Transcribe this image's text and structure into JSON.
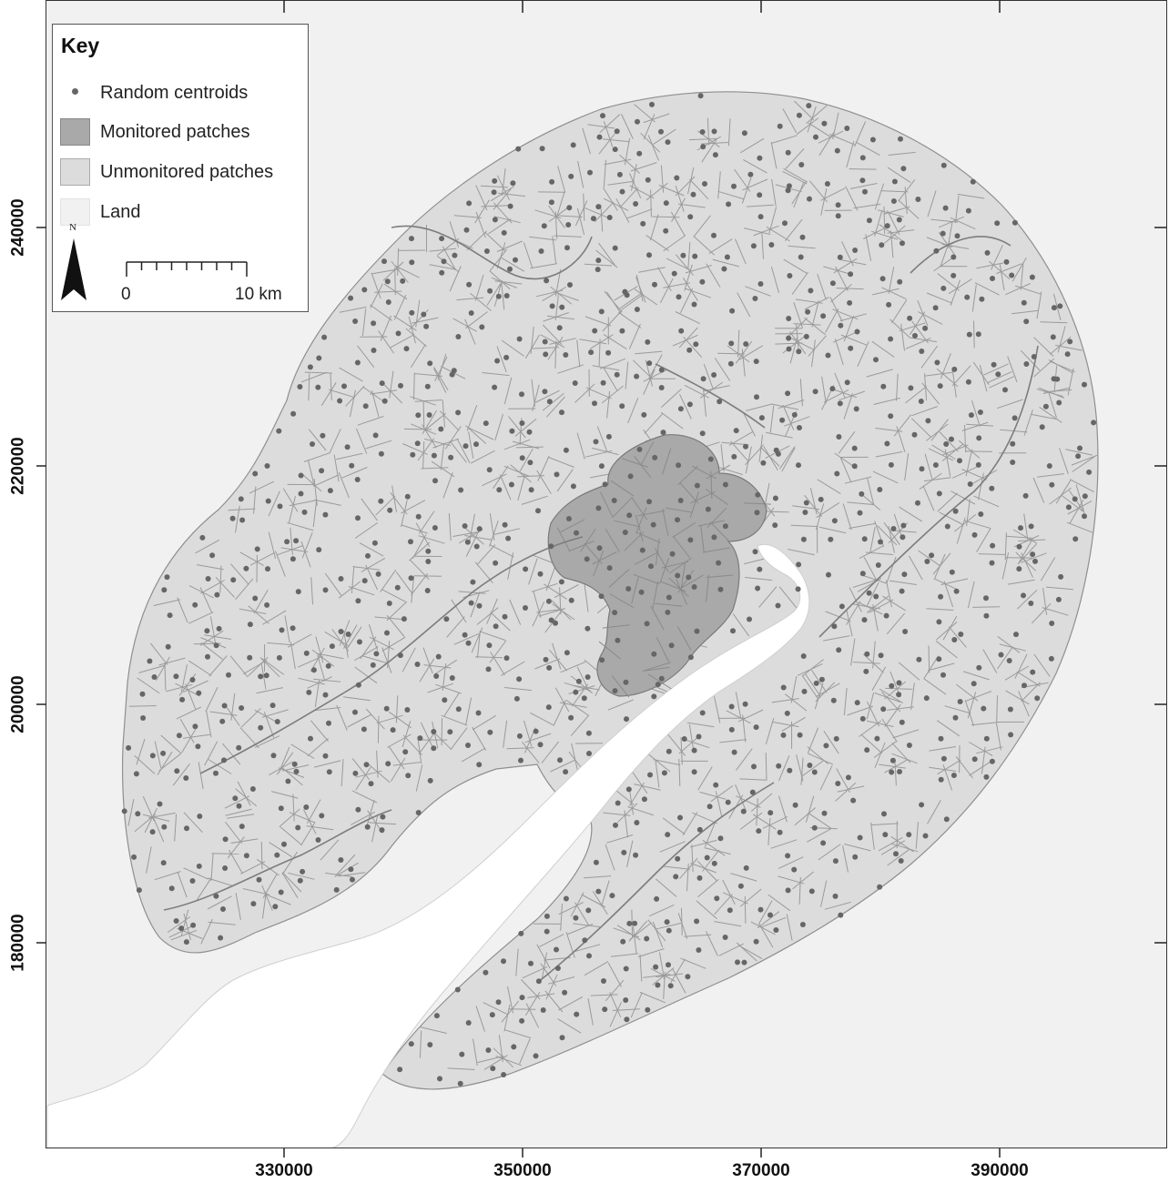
{
  "legend": {
    "title": "Key",
    "items": [
      {
        "label": "Random centroids",
        "symbol": "dot",
        "color": "#666666"
      },
      {
        "label": "Monitored patches",
        "symbol": "box",
        "color": "#a9a9a9"
      },
      {
        "label": "Unmonitored patches",
        "symbol": "box",
        "color": "#dcdcdc"
      },
      {
        "label": "Land",
        "symbol": "box",
        "color": "#f1f1f1"
      }
    ],
    "north_label": "N",
    "scale_start": "0",
    "scale_end": "10 km"
  },
  "axes": {
    "x_ticks": [
      "330000",
      "350000",
      "370000",
      "390000"
    ],
    "y_ticks": [
      "240000",
      "220000",
      "200000",
      "180000"
    ]
  },
  "colors": {
    "land": "#f1f1f1",
    "unmonitored": "#dcdcdc",
    "monitored": "#a9a9a9",
    "water": "#ffffff",
    "boundary": "#8a8a8a",
    "centroid": "#666666"
  }
}
